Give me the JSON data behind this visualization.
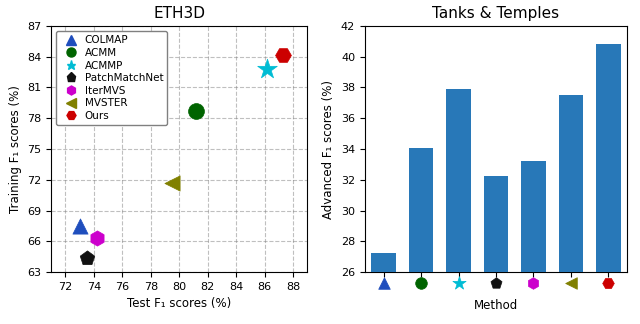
{
  "scatter_title": "ETH3D",
  "bar_title": "Tanks & Temples",
  "scatter_xlabel": "Test F₁ scores (%)",
  "scatter_ylabel": "Training F₁ scores (%)",
  "bar_ylabel": "Advanced F₁ scores (%)",
  "bar_xlabel": "Method",
  "scatter_xlim": [
    71,
    89
  ],
  "scatter_ylim": [
    63,
    87
  ],
  "scatter_xticks": [
    72,
    74,
    76,
    78,
    80,
    82,
    84,
    86,
    88
  ],
  "scatter_yticks": [
    63,
    66,
    69,
    72,
    75,
    78,
    81,
    84,
    87
  ],
  "bar_ylim": [
    26,
    42
  ],
  "bar_yticks": [
    26,
    28,
    30,
    32,
    34,
    36,
    38,
    40,
    42
  ],
  "methods": [
    "COLMAP",
    "ACMM",
    "ACMMP",
    "PatchMatchNet",
    "IterMVS",
    "MVSTER",
    "Ours"
  ],
  "scatter_x": [
    73.0,
    81.2,
    86.2,
    73.5,
    74.2,
    79.5,
    87.3
  ],
  "scatter_y": [
    67.5,
    78.7,
    82.8,
    64.4,
    66.3,
    71.7,
    84.2
  ],
  "bar_values": [
    27.24,
    34.05,
    37.93,
    32.28,
    33.22,
    37.53,
    40.8
  ],
  "colors": [
    "#1f4ebd",
    "#006400",
    "#00bcd4",
    "#111111",
    "#cc00cc",
    "#808000",
    "#cc0000"
  ],
  "markers": [
    "^",
    "o",
    "*",
    "p",
    "h",
    "<",
    "o"
  ],
  "bar_color": "#2878b8",
  "marker_sizes_scatter": [
    120,
    130,
    220,
    120,
    120,
    120,
    130
  ],
  "marker_sizes_bar": [
    70,
    70,
    100,
    70,
    70,
    70,
    70
  ],
  "legend_fontsize": 7.5,
  "tick_fontsize": 8,
  "axis_label_fontsize": 8.5,
  "title_fontsize": 11
}
